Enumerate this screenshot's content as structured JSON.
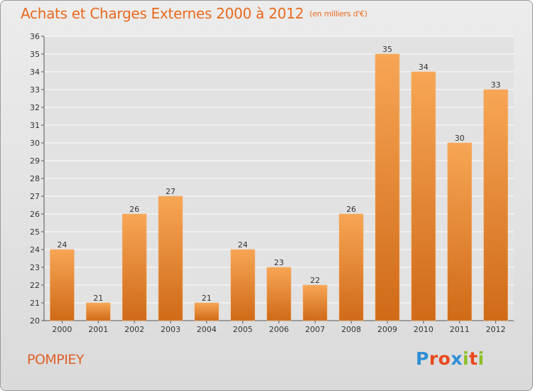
{
  "header": {
    "title": "Achats et Charges Externes 2000 à 2012",
    "unit": "(en milliers d'€)"
  },
  "footer": {
    "town": "POMPIEY",
    "brand": "Proxiti"
  },
  "colors": {
    "accent": "#e86a1f",
    "bar_top": "#f7a655",
    "bar_bottom": "#cf6a18",
    "grid": "#ffffff"
  },
  "chart_data": {
    "type": "bar",
    "title": "Achats et Charges Externes 2000 à 2012",
    "subtitle": "(en milliers d'€)",
    "categories": [
      "2000",
      "2001",
      "2002",
      "2003",
      "2004",
      "2005",
      "2006",
      "2007",
      "2008",
      "2009",
      "2010",
      "2011",
      "2012"
    ],
    "values": [
      24,
      21,
      26,
      27,
      21,
      24,
      23,
      22,
      26,
      35,
      34,
      30,
      33
    ],
    "ylim": [
      20,
      36
    ],
    "yticks": [
      20,
      21,
      22,
      23,
      24,
      25,
      26,
      27,
      28,
      29,
      30,
      31,
      32,
      33,
      34,
      35,
      36
    ],
    "grid": true,
    "data_labels": true
  }
}
